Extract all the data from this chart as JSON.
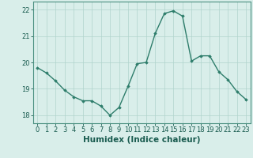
{
  "x": [
    0,
    1,
    2,
    3,
    4,
    5,
    6,
    7,
    8,
    9,
    10,
    11,
    12,
    13,
    14,
    15,
    16,
    17,
    18,
    19,
    20,
    21,
    22,
    23
  ],
  "y": [
    19.8,
    19.6,
    19.3,
    18.95,
    18.7,
    18.55,
    18.55,
    18.35,
    18.0,
    18.3,
    19.1,
    19.95,
    20.0,
    21.1,
    21.85,
    21.95,
    21.75,
    20.05,
    20.25,
    20.25,
    19.65,
    19.35,
    18.9,
    18.6
  ],
  "line_color": "#2e7d6b",
  "marker": "D",
  "marker_size": 1.8,
  "linewidth": 1.0,
  "xlabel": "Humidex (Indice chaleur)",
  "xlabel_fontsize": 7.5,
  "xlabel_color": "#1a5c50",
  "ylim": [
    17.7,
    22.3
  ],
  "xlim": [
    -0.5,
    23.5
  ],
  "yticks": [
    18,
    19,
    20,
    21,
    22
  ],
  "xticks": [
    0,
    1,
    2,
    3,
    4,
    5,
    6,
    7,
    8,
    9,
    10,
    11,
    12,
    13,
    14,
    15,
    16,
    17,
    18,
    19,
    20,
    21,
    22,
    23
  ],
  "tick_fontsize": 6,
  "tick_color": "#1a5c50",
  "grid_color": "#b0d4cc",
  "grid_linewidth": 0.5,
  "bg_color": "#d9eeea",
  "spine_color": "#4a9080"
}
